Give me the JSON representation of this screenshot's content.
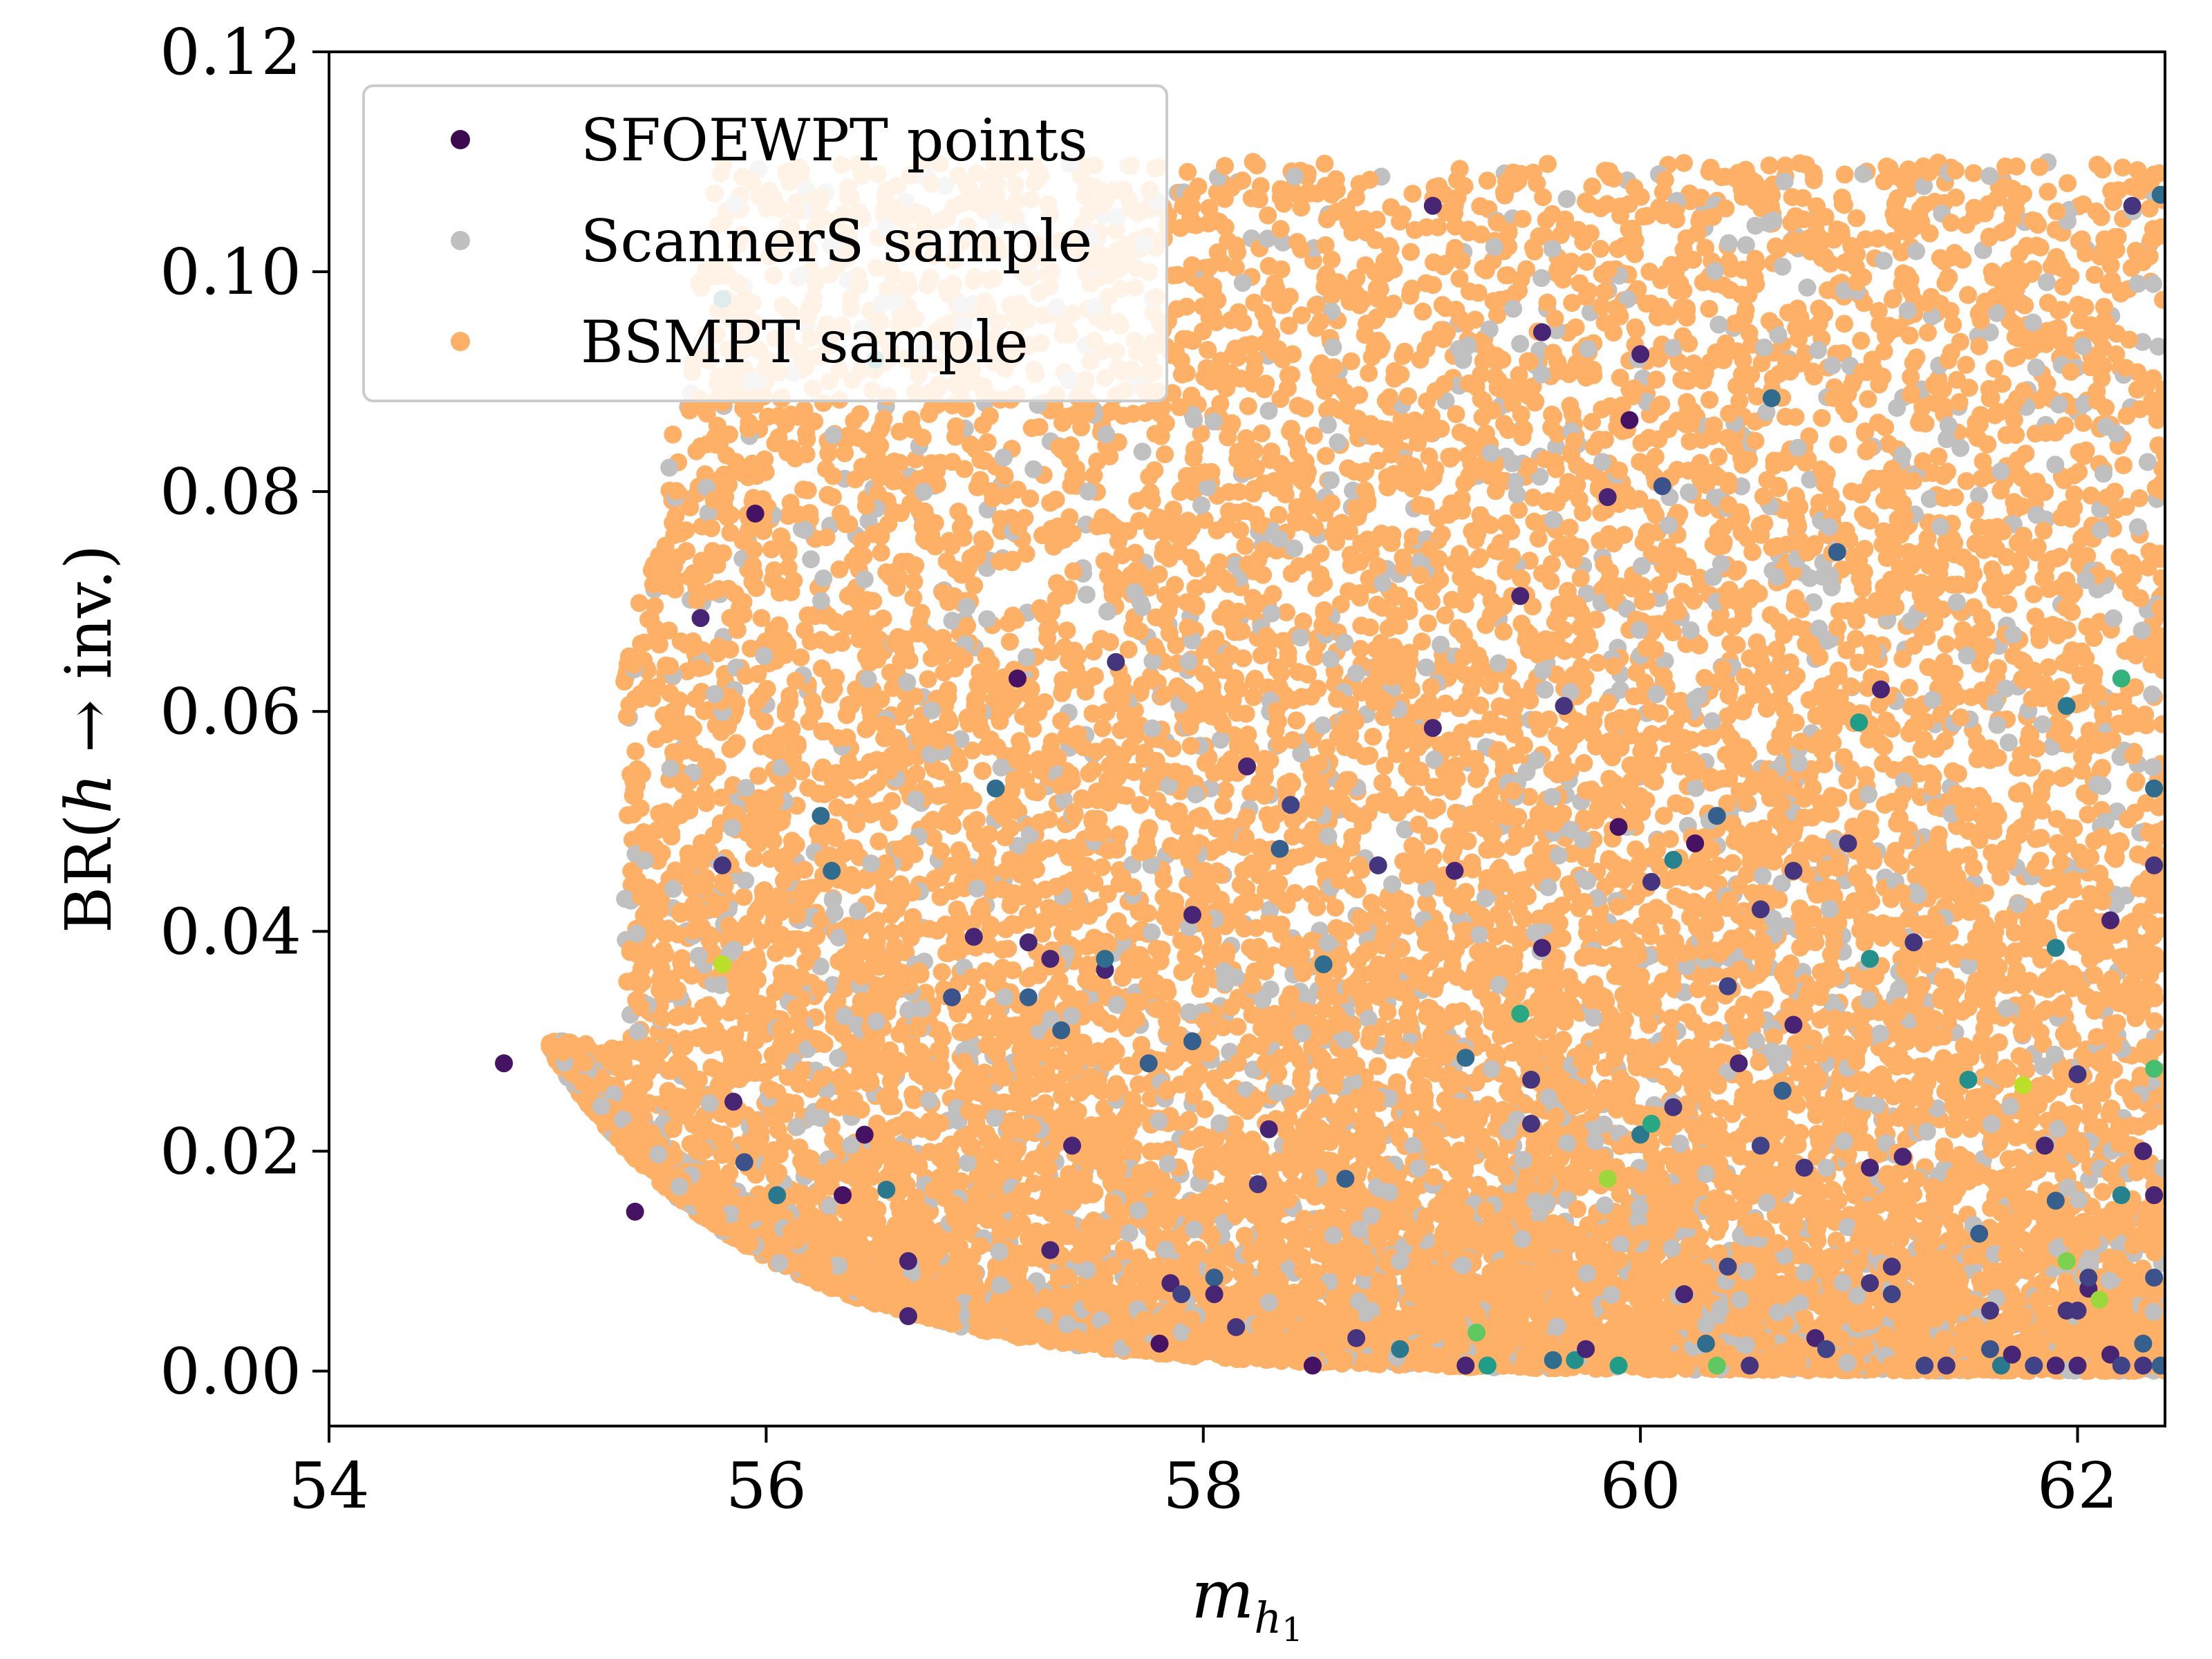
{
  "chart_data": {
    "type": "scatter",
    "xlabel": "m_{h1}",
    "ylabel": "BR(h → inv.)",
    "xlim": [
      54,
      62.4
    ],
    "ylim": [
      -0.005,
      0.12
    ],
    "x_ticks": [
      54,
      56,
      58,
      60,
      62
    ],
    "x_tick_labels": [
      "54",
      "56",
      "58",
      "60",
      "62"
    ],
    "y_ticks": [
      0.0,
      0.02,
      0.04,
      0.06,
      0.08,
      0.1,
      0.12
    ],
    "y_tick_labels": [
      "0.00",
      "0.02",
      "0.04",
      "0.06",
      "0.08",
      "0.10",
      "0.12"
    ],
    "grid": false,
    "legend_placement": "top-left",
    "colors": {
      "bsmpt": "#fdb066",
      "scanners": "#c0c0c0",
      "sfoewpt_legend": "#3b0a4f"
    },
    "series": [
      {
        "name": "SFOEWPT points",
        "colored_by": "viridis",
        "points": [
          [
            54.8,
            0.028,
            0.05
          ],
          [
            55.4,
            0.0145,
            0.05
          ],
          [
            55.7,
            0.0685,
            0.1
          ],
          [
            55.8,
            0.046,
            0.15
          ],
          [
            55.8,
            0.037,
            0.9
          ],
          [
            55.8,
            0.0975,
            0.45
          ],
          [
            55.85,
            0.0245,
            0.1
          ],
          [
            55.9,
            0.019,
            0.25
          ],
          [
            55.95,
            0.078,
            0.05
          ],
          [
            56.05,
            0.016,
            0.4
          ],
          [
            56.25,
            0.0505,
            0.35
          ],
          [
            56.3,
            0.0455,
            0.35
          ],
          [
            56.35,
            0.016,
            0.05
          ],
          [
            56.45,
            0.0215,
            0.05
          ],
          [
            56.5,
            0.092,
            0.5
          ],
          [
            56.55,
            0.0165,
            0.4
          ],
          [
            56.65,
            0.01,
            0.1
          ],
          [
            56.65,
            0.005,
            0.1
          ],
          [
            56.85,
            0.034,
            0.25
          ],
          [
            56.95,
            0.0395,
            0.1
          ],
          [
            57.05,
            0.053,
            0.35
          ],
          [
            57.15,
            0.063,
            0.05
          ],
          [
            57.2,
            0.039,
            0.1
          ],
          [
            57.2,
            0.034,
            0.3
          ],
          [
            57.3,
            0.0375,
            0.1
          ],
          [
            57.3,
            0.011,
            0.1
          ],
          [
            57.35,
            0.031,
            0.3
          ],
          [
            57.4,
            0.0205,
            0.1
          ],
          [
            57.55,
            0.0365,
            0.1
          ],
          [
            57.55,
            0.0375,
            0.35
          ],
          [
            57.6,
            0.0645,
            0.15
          ],
          [
            57.75,
            0.028,
            0.3
          ],
          [
            57.8,
            0.0025,
            0.05
          ],
          [
            57.85,
            0.008,
            0.1
          ],
          [
            57.9,
            0.007,
            0.2
          ],
          [
            57.95,
            0.0415,
            0.1
          ],
          [
            57.95,
            0.03,
            0.3
          ],
          [
            58.05,
            0.0085,
            0.3
          ],
          [
            58.05,
            0.007,
            0.1
          ],
          [
            58.15,
            0.004,
            0.15
          ],
          [
            58.2,
            0.055,
            0.1
          ],
          [
            58.25,
            0.017,
            0.15
          ],
          [
            58.3,
            0.022,
            0.1
          ],
          [
            58.35,
            0.0475,
            0.3
          ],
          [
            58.4,
            0.0515,
            0.2
          ],
          [
            58.5,
            0.0005,
            0.05
          ],
          [
            58.55,
            0.037,
            0.35
          ],
          [
            58.65,
            0.0175,
            0.3
          ],
          [
            58.7,
            0.003,
            0.15
          ],
          [
            58.8,
            0.046,
            0.15
          ],
          [
            58.9,
            0.002,
            0.4
          ],
          [
            59.05,
            0.106,
            0.1
          ],
          [
            59.05,
            0.0585,
            0.1
          ],
          [
            59.15,
            0.0455,
            0.1
          ],
          [
            59.2,
            0.0285,
            0.35
          ],
          [
            59.2,
            0.0005,
            0.1
          ],
          [
            59.25,
            0.0035,
            0.75
          ],
          [
            59.3,
            0.0005,
            0.55
          ],
          [
            59.45,
            0.0705,
            0.1
          ],
          [
            59.45,
            0.0325,
            0.6
          ],
          [
            59.5,
            0.0265,
            0.15
          ],
          [
            59.5,
            0.0225,
            0.15
          ],
          [
            59.55,
            0.0945,
            0.1
          ],
          [
            59.55,
            0.0385,
            0.1
          ],
          [
            59.6,
            0.001,
            0.35
          ],
          [
            59.65,
            0.0605,
            0.15
          ],
          [
            59.7,
            0.001,
            0.5
          ],
          [
            59.75,
            0.002,
            0.1
          ],
          [
            59.85,
            0.0175,
            0.85
          ],
          [
            59.85,
            0.0795,
            0.1
          ],
          [
            59.9,
            0.0495,
            0.05
          ],
          [
            59.9,
            0.0005,
            0.55
          ],
          [
            59.95,
            0.0865,
            0.05
          ],
          [
            60.0,
            0.0925,
            0.1
          ],
          [
            60.0,
            0.0215,
            0.4
          ],
          [
            60.05,
            0.0225,
            0.6
          ],
          [
            60.05,
            0.0445,
            0.15
          ],
          [
            60.1,
            0.0805,
            0.25
          ],
          [
            60.15,
            0.0465,
            0.45
          ],
          [
            60.15,
            0.024,
            0.15
          ],
          [
            60.2,
            0.007,
            0.1
          ],
          [
            60.25,
            0.048,
            0.05
          ],
          [
            60.3,
            0.0025,
            0.35
          ],
          [
            60.35,
            0.0505,
            0.3
          ],
          [
            60.35,
            0.0005,
            0.75
          ],
          [
            60.4,
            0.035,
            0.2
          ],
          [
            60.4,
            0.0095,
            0.2
          ],
          [
            60.45,
            0.028,
            0.1
          ],
          [
            60.5,
            0.0005,
            0.15
          ],
          [
            60.55,
            0.042,
            0.15
          ],
          [
            60.55,
            0.0205,
            0.2
          ],
          [
            60.6,
            0.0885,
            0.35
          ],
          [
            60.65,
            0.0255,
            0.3
          ],
          [
            60.7,
            0.0315,
            0.1
          ],
          [
            60.7,
            0.0455,
            0.15
          ],
          [
            60.75,
            0.0185,
            0.15
          ],
          [
            60.8,
            0.003,
            0.1
          ],
          [
            60.85,
            0.002,
            0.2
          ],
          [
            60.9,
            0.0745,
            0.3
          ],
          [
            60.95,
            0.048,
            0.15
          ],
          [
            61.0,
            0.059,
            0.55
          ],
          [
            61.05,
            0.0375,
            0.5
          ],
          [
            61.05,
            0.0185,
            0.1
          ],
          [
            61.05,
            0.008,
            0.15
          ],
          [
            61.1,
            0.062,
            0.1
          ],
          [
            61.15,
            0.0095,
            0.15
          ],
          [
            61.15,
            0.007,
            0.2
          ],
          [
            61.2,
            0.0195,
            0.1
          ],
          [
            61.25,
            0.039,
            0.15
          ],
          [
            61.3,
            0.0005,
            0.2
          ],
          [
            61.4,
            0.0005,
            0.15
          ],
          [
            61.5,
            0.0265,
            0.5
          ],
          [
            61.55,
            0.0125,
            0.3
          ],
          [
            61.6,
            0.002,
            0.25
          ],
          [
            61.6,
            0.0055,
            0.15
          ],
          [
            61.65,
            0.0005,
            0.4
          ],
          [
            61.7,
            0.0015,
            0.1
          ],
          [
            61.75,
            0.026,
            0.9
          ],
          [
            61.8,
            0.0005,
            0.2
          ],
          [
            61.85,
            0.0205,
            0.1
          ],
          [
            61.9,
            0.0005,
            0.1
          ],
          [
            61.9,
            0.0385,
            0.45
          ],
          [
            61.9,
            0.0155,
            0.3
          ],
          [
            61.95,
            0.01,
            0.8
          ],
          [
            61.95,
            0.0605,
            0.4
          ],
          [
            61.95,
            0.0055,
            0.15
          ],
          [
            62.0,
            0.0005,
            0.1
          ],
          [
            62.0,
            0.027,
            0.15
          ],
          [
            62.0,
            0.0055,
            0.15
          ],
          [
            62.05,
            0.0075,
            0.1
          ],
          [
            62.05,
            0.0085,
            0.2
          ],
          [
            62.1,
            0.0065,
            0.85
          ],
          [
            62.15,
            0.0015,
            0.1
          ],
          [
            62.15,
            0.041,
            0.1
          ],
          [
            62.2,
            0.0005,
            0.2
          ],
          [
            62.2,
            0.016,
            0.45
          ],
          [
            62.2,
            0.063,
            0.65
          ],
          [
            62.25,
            0.106,
            0.15
          ],
          [
            62.3,
            0.0005,
            0.15
          ],
          [
            62.3,
            0.0025,
            0.3
          ],
          [
            62.3,
            0.02,
            0.1
          ],
          [
            62.35,
            0.0275,
            0.7
          ],
          [
            62.35,
            0.016,
            0.1
          ],
          [
            62.35,
            0.0085,
            0.25
          ],
          [
            62.35,
            0.046,
            0.15
          ],
          [
            62.35,
            0.053,
            0.35
          ],
          [
            62.38,
            0.107,
            0.35
          ],
          [
            62.38,
            0.0005,
            0.3
          ]
        ]
      },
      {
        "name": "ScannerS sample",
        "color": "#c0c0c0"
      },
      {
        "name": "BSMPT sample",
        "color": "#fdb066"
      }
    ]
  }
}
